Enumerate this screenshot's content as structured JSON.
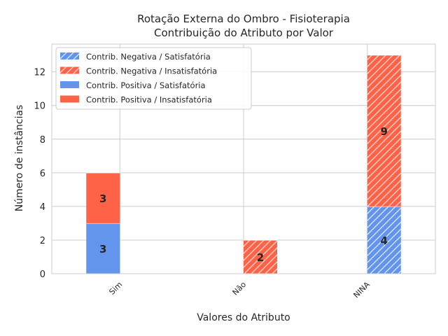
{
  "colors": {
    "satisfatoria": "#6495ED",
    "insatisfatoria": "#FF6347",
    "hatch": "#ffffff"
  },
  "chart_data": {
    "type": "bar",
    "title": "Rotação Externa do Ombro - Fisioterapia",
    "subtitle": "Contribuição do Atributo por Valor",
    "xlabel": "Valores do Atributo",
    "ylabel": "Número de instâncias",
    "categories": [
      "Sim",
      "Não",
      "NINA"
    ],
    "ylim": [
      0,
      13.65
    ],
    "yticks": [
      "0",
      "2",
      "4",
      "6",
      "8",
      "10",
      "12"
    ],
    "grid": true,
    "legend_position": "upper-left",
    "groups": [
      {
        "name": "Contrib. Positiva",
        "offset": "left",
        "hatched": false,
        "stack": [
          {
            "name": "Contrib. Positiva / Satisfatória",
            "class": "satisfatoria",
            "values": [
              3,
              0,
              0
            ]
          },
          {
            "name": "Contrib. Positiva / Insatisfatória",
            "class": "insatisfatoria",
            "values": [
              3,
              0,
              0
            ]
          }
        ]
      },
      {
        "name": "Contrib. Negativa",
        "offset": "right",
        "hatched": true,
        "stack": [
          {
            "name": "Contrib. Negativa / Satisfatória",
            "class": "satisfatoria",
            "values": [
              0,
              0,
              4
            ]
          },
          {
            "name": "Contrib. Negativa / Insatisfatória",
            "class": "insatisfatoria",
            "values": [
              0,
              2,
              9
            ]
          }
        ]
      }
    ],
    "legend": [
      {
        "label": "Contrib. Negativa / Satisfatória",
        "class": "satisfatoria",
        "hatched": true
      },
      {
        "label": "Contrib. Negativa / Insatisfatória",
        "class": "insatisfatoria",
        "hatched": true
      },
      {
        "label": "Contrib. Positiva / Satisfatória",
        "class": "satisfatoria",
        "hatched": false
      },
      {
        "label": "Contrib. Positiva / Insatisfatória",
        "class": "insatisfatoria",
        "hatched": false
      }
    ]
  }
}
